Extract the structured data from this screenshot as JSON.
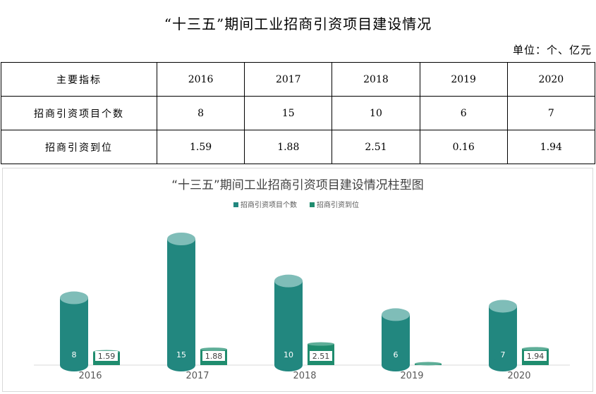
{
  "document": {
    "title": "“十三五”期间工业招商引资项目建设情况",
    "unit": "单位：个、亿元"
  },
  "table": {
    "header": [
      "主要指标",
      "2016",
      "2017",
      "2018",
      "2019",
      "2020"
    ],
    "rows": [
      {
        "label": "招商引资项目个数",
        "values": [
          "8",
          "15",
          "10",
          "6",
          "7"
        ]
      },
      {
        "label": "招商引资到位",
        "values": [
          "1.59",
          "1.88",
          "2.51",
          "0.16",
          "1.94"
        ]
      }
    ]
  },
  "chart_data": {
    "type": "bar",
    "title": "“十三五”期间工业招商引资项目建设情况柱型图",
    "categories": [
      "2016",
      "2017",
      "2018",
      "2019",
      "2020"
    ],
    "series": [
      {
        "name": "招商引资项目个数",
        "values": [
          8,
          15,
          10,
          6,
          7
        ],
        "labels": [
          "8",
          "15",
          "10",
          "6",
          "7"
        ],
        "color": "#22877f"
      },
      {
        "name": "招商引资到位",
        "values": [
          1.59,
          1.88,
          2.51,
          0.16,
          1.94
        ],
        "labels": [
          "1.59",
          "1.88",
          "2.51",
          "",
          "1.94"
        ],
        "color": "#1f8c6e"
      }
    ],
    "legend_position": "top",
    "grid": false,
    "ylim": [
      0,
      15
    ]
  },
  "colors": {
    "cylinder_body": "#22877f",
    "cylinder_top": "#7fbdb8",
    "small_body": "#1f8c6e",
    "small_top": "#5fae98"
  }
}
